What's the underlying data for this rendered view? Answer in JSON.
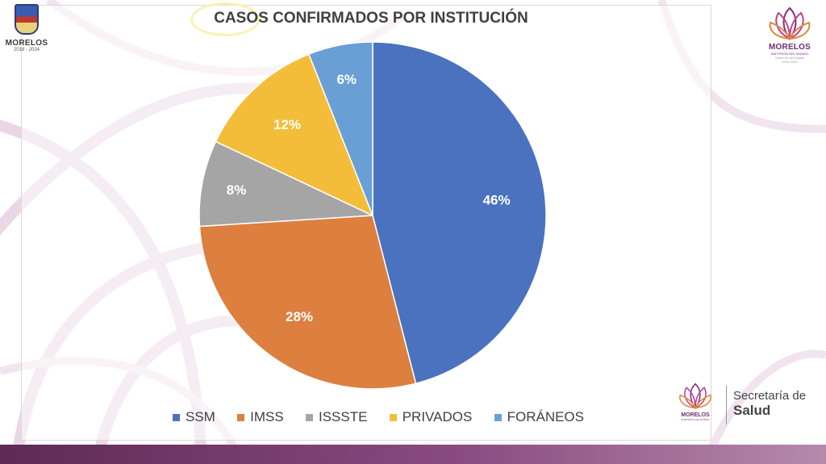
{
  "logos": {
    "left": {
      "text": "MORELOS",
      "years": "2018 - 2024"
    },
    "right": {
      "text": "MORELOS",
      "subtitle": "ANFITRIÓN DEL MUNDO",
      "tagline": "Gobierno del Estado",
      "years": "2018-2024"
    },
    "footer": {
      "text": "MORELOS",
      "subtitle": "ANFITRIÓN DEL MUNDO"
    }
  },
  "footer": {
    "secretaria_line1": "Secretaría de",
    "secretaria_line2": "Salud"
  },
  "colors": {
    "ssm": "#4a72bf",
    "imss": "#dd7f3e",
    "issste": "#a5a5a5",
    "privados": "#f4bd39",
    "foraneos": "#6a9fd6",
    "accent": "#8a4a80"
  },
  "chart_data": {
    "type": "pie",
    "title": "CASOS CONFIRMADOS POR INSTITUCIÓN",
    "legend_position": "bottom",
    "slices": [
      {
        "label": "SSM",
        "value": 46,
        "display": "46%",
        "color": "#4a72bf"
      },
      {
        "label": "IMSS",
        "value": 28,
        "display": "28%",
        "color": "#dd7f3e"
      },
      {
        "label": "ISSSTE",
        "value": 8,
        "display": "8%",
        "color": "#a5a5a5"
      },
      {
        "label": "PRIVADOS",
        "value": 12,
        "display": "12%",
        "color": "#f4bd39"
      },
      {
        "label": "FORÁNEOS",
        "value": 6,
        "display": "6%",
        "color": "#6a9fd6"
      }
    ]
  }
}
